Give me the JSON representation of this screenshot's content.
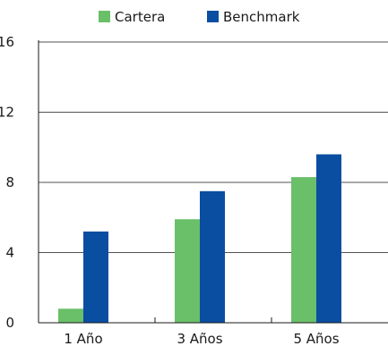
{
  "chart_data": {
    "type": "bar",
    "title": "",
    "xlabel": "",
    "ylabel": "",
    "categories": [
      "1 Año",
      "3 Años",
      "5 Años"
    ],
    "series": [
      {
        "name": "Cartera",
        "color": "#6abf69",
        "values": [
          0.8,
          5.9,
          8.3
        ]
      },
      {
        "name": "Benchmark",
        "color": "#0a4ea2",
        "values": [
          5.2,
          7.5,
          9.6
        ]
      }
    ],
    "ylim": [
      0,
      16
    ],
    "yticks": [
      0,
      4,
      8,
      12,
      16
    ],
    "grid": true,
    "legend_position": "top-center"
  }
}
